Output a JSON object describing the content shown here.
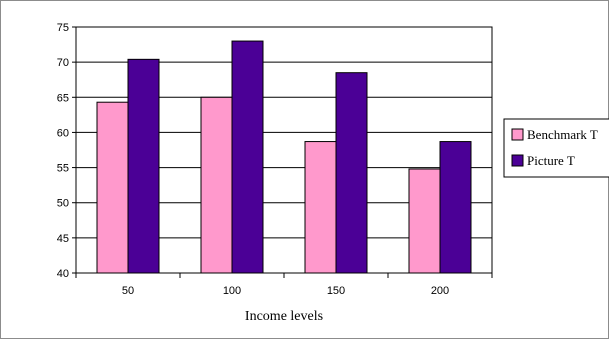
{
  "chart_data": {
    "type": "bar",
    "title": "",
    "xlabel": "Income levels",
    "ylabel": "",
    "categories": [
      "50",
      "100",
      "150",
      "200"
    ],
    "ylim": [
      40,
      75
    ],
    "ytick_step": 5,
    "ytick_labels": [
      "40",
      "45",
      "50",
      "55",
      "60",
      "65",
      "70",
      "75"
    ],
    "grid": true,
    "legend_position": "right",
    "series": [
      {
        "name": "Benchmark T",
        "color": "#ff99cc",
        "values": [
          64.3,
          65.0,
          58.7,
          54.8
        ]
      },
      {
        "name": "Picture T",
        "color": "#4b0096",
        "values": [
          70.4,
          73.0,
          68.5,
          58.7
        ]
      }
    ]
  }
}
